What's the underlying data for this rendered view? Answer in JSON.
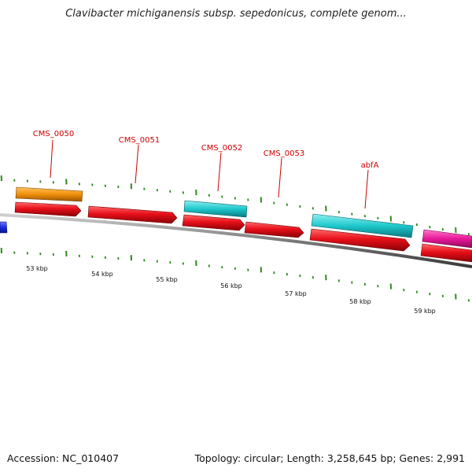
{
  "title": "Clavibacter michiganensis subsp. sepedonicus, complete genom...",
  "footer": {
    "accession": "Accession: NC_010407",
    "summary": "Topology: circular; Length: 3,258,645 bp; Genes: 2,991"
  },
  "gene_labels": [
    {
      "text": "CMS_0050"
    },
    {
      "text": "CMS_0051"
    },
    {
      "text": "CMS_0052"
    },
    {
      "text": "CMS_0053"
    },
    {
      "text": "abfA"
    }
  ],
  "ruler_labels": [
    "53 kbp",
    "54 kbp",
    "55 kbp",
    "56 kbp",
    "57 kbp",
    "58 kbp",
    "59 kbp"
  ],
  "colors": {
    "cds": "#e8101a",
    "orange_feature": "#f0900c",
    "cyan_feature": "#1ec8cc",
    "magenta_feature": "#e8189a",
    "blue_feature": "#1a2ee8",
    "backbone": "#808080",
    "tick": "#2a8a1a",
    "label": "#cc0000"
  }
}
